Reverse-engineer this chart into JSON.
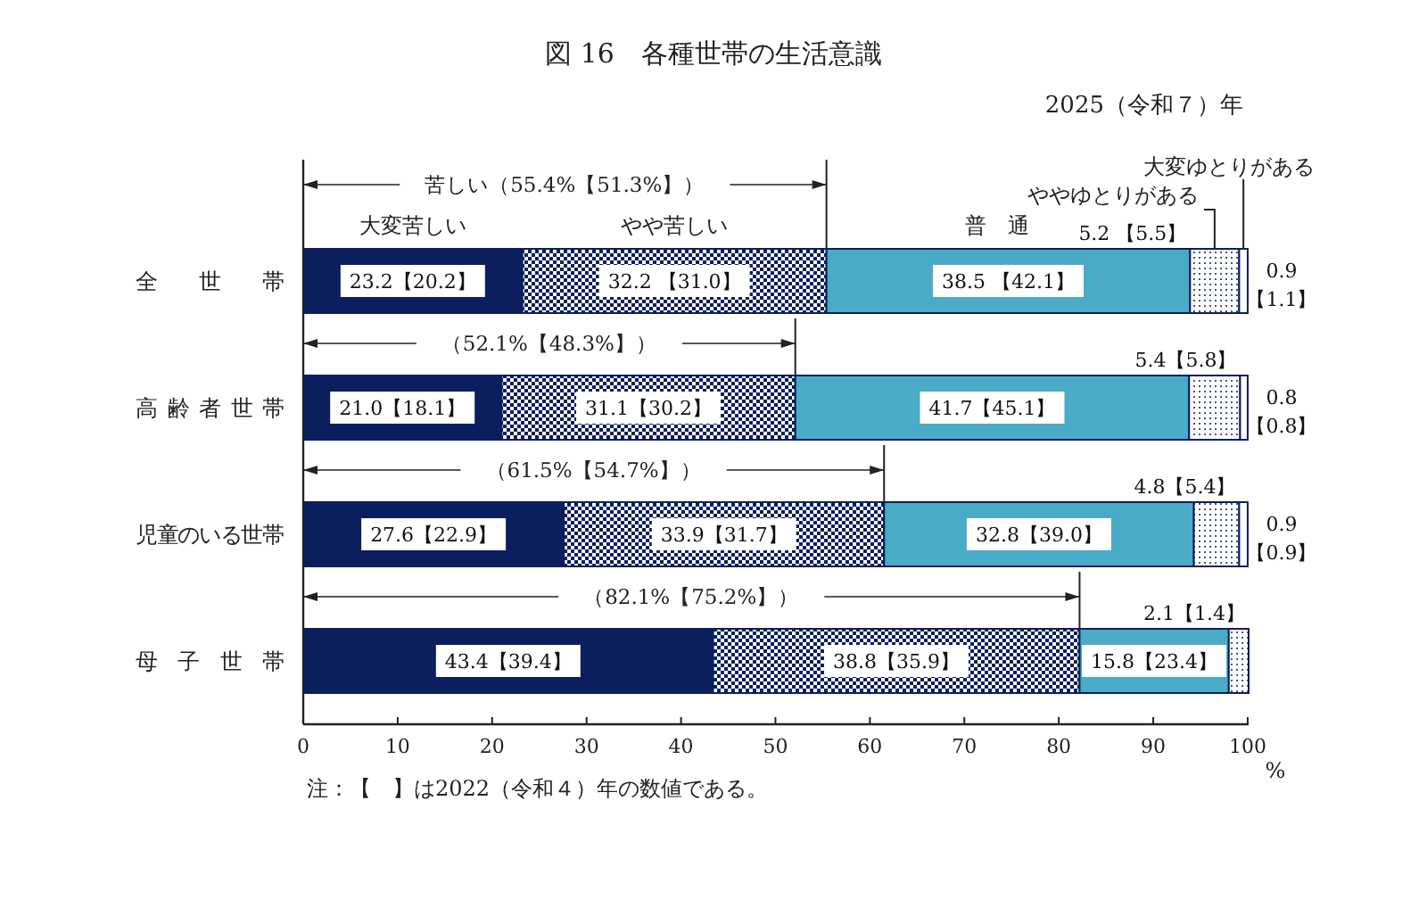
{
  "chart_data": {
    "type": "bar",
    "orientation": "horizontal",
    "stacked": true,
    "title": "図 16　各種世帯の生活意識",
    "subtitle": "2025（令和７）年",
    "xlabel": "%",
    "categories": [
      "全世帯",
      "高齢者世帯",
      "児童のいる世帯",
      "母子世帯"
    ],
    "xlim": [
      0,
      100.1
    ],
    "xticks": [
      0,
      10,
      20,
      30,
      40,
      50,
      60,
      70,
      80,
      90,
      100
    ],
    "series": [
      {
        "name": "大変苦しい",
        "color": "#0b1f5e",
        "values": [
          23.2,
          21.0,
          27.6,
          43.4
        ],
        "value_labels": [
          "23.2【20.2】",
          "21.0【18.1】",
          "27.6【22.9】",
          "43.4【39.4】"
        ]
      },
      {
        "name": "やや苦しい",
        "color": "#0b1f5e",
        "values": [
          32.2,
          31.1,
          33.9,
          38.8
        ],
        "value_labels": [
          "32.2 【31.0】",
          "31.1【30.2】",
          "33.9【31.7】",
          "38.8【35.9】"
        ]
      },
      {
        "name": "普通",
        "color": "#4aabc6",
        "values": [
          38.5,
          41.7,
          32.8,
          15.8
        ],
        "value_labels": [
          "38.5 【42.1】",
          "41.7【45.1】",
          "32.8【39.0】",
          "15.8【23.4】"
        ]
      },
      {
        "name": "ややゆとりがある",
        "color": "#0b1f5e",
        "values": [
          5.2,
          5.4,
          4.8,
          2.1
        ],
        "value_labels": [
          "5.2 【5.5】",
          "5.4【5.8】",
          "4.8【5.4】",
          "2.1【1.4】"
        ]
      },
      {
        "name": "大変ゆとりがある",
        "color": "#ffffff",
        "values": [
          0.9,
          0.8,
          0.9,
          null
        ],
        "value_labels": [
          "0.9【1.1】",
          "0.8【0.8】",
          "0.9【0.9】",
          null
        ]
      }
    ],
    "annotations": [
      "苦しい（55.4%【51.3%】）",
      "（52.1%【48.3%】）",
      "（61.5%【54.7%】）",
      "（82.1%【75.2%】）",
      "注：【　】は2022（令和４）年の数値である。"
    ]
  }
}
